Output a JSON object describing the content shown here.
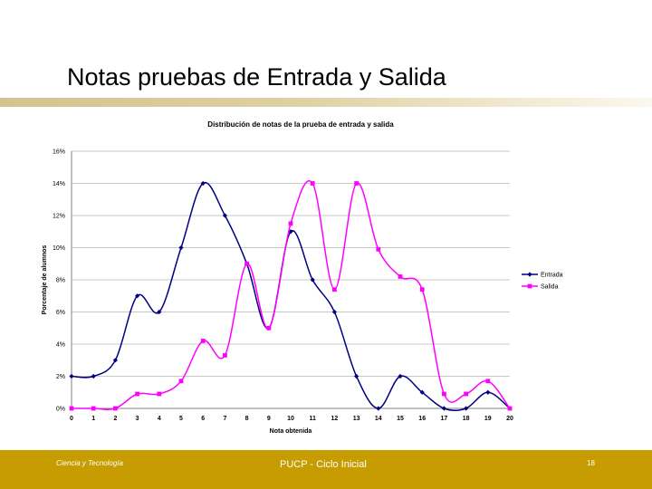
{
  "slide": {
    "title": "Notas pruebas de Entrada y Salida",
    "footer_left": "Ciencia y Tecnología",
    "footer_center": "PUCP - Ciclo Inicial",
    "page_number": "18"
  },
  "chart_data": {
    "type": "line",
    "title": "Distribución de notas de la prueba de entrada y salida",
    "xlabel": "Nota obtenida",
    "ylabel": "Porcentaje de alumnos",
    "categories": [
      "0",
      "1",
      "2",
      "3",
      "4",
      "5",
      "6",
      "7",
      "8",
      "9",
      "10",
      "11",
      "12",
      "13",
      "14",
      "15",
      "16",
      "17",
      "18",
      "19",
      "20"
    ],
    "y_ticks": [
      "0%",
      "2%",
      "4%",
      "6%",
      "8%",
      "10%",
      "12%",
      "14%",
      "16%"
    ],
    "ylim": [
      0,
      16
    ],
    "grid": true,
    "legend_position": "right",
    "series": [
      {
        "name": "Entrada",
        "color": "#000080",
        "marker": "diamond",
        "values": [
          2,
          2,
          3,
          7,
          6,
          10,
          14,
          12,
          9,
          5,
          11,
          8,
          6,
          2,
          0,
          2,
          1,
          0,
          0,
          1,
          0
        ]
      },
      {
        "name": "Salida",
        "color": "#ff00ff",
        "marker": "square",
        "values": [
          0,
          0,
          0,
          0.9,
          0.9,
          1.7,
          4.2,
          3.3,
          9,
          5,
          11.5,
          14,
          7.4,
          14,
          9.9,
          8.2,
          7.4,
          0.9,
          0.9,
          1.7,
          0
        ]
      }
    ]
  }
}
